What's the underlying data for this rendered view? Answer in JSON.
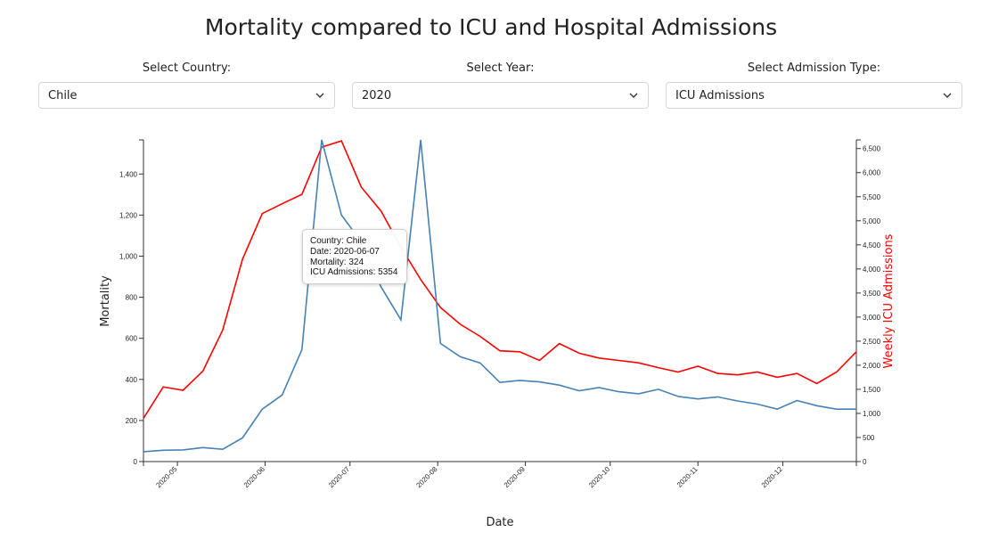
{
  "title": "Mortality compared to ICU and Hospital Admissions",
  "controls": {
    "country": {
      "label": "Select Country:",
      "value": "Chile"
    },
    "year": {
      "label": "Select Year:",
      "value": "2020"
    },
    "admission": {
      "label": "Select Admission Type:",
      "value": "ICU Admissions"
    }
  },
  "tooltip": {
    "country": "Country: Chile",
    "date": "Date: 2020-06-07",
    "mortality": "Mortality: 324",
    "admissions": "ICU Admissions: 5354"
  },
  "colors": {
    "mortality": "#4682b4",
    "admissions": "#ff0000"
  },
  "chart_data": {
    "type": "line",
    "xlabel": "Date",
    "ylabel_left": "Mortality",
    "ylabel_right": "Weekly ICU Admissions",
    "x_ticks": [
      "2020-05",
      "2020-06",
      "2020-07",
      "2020-08",
      "2020-09",
      "2020-10",
      "2020-11",
      "2020-12"
    ],
    "y_left_ticks": [
      "0",
      "200",
      "400",
      "600",
      "800",
      "1,000",
      "1,200",
      "1,400"
    ],
    "y_right_ticks": [
      "0",
      "500",
      "1,000",
      "1,500",
      "2,000",
      "2,500",
      "3,000",
      "3,500",
      "4,000",
      "4,500",
      "5,000",
      "5,500",
      "6,000",
      "6,500"
    ],
    "xlim": [
      "2020-04-19",
      "2020-12-27"
    ],
    "ylim_left": [
      0,
      1566
    ],
    "ylim_right": [
      0,
      6680
    ],
    "x": [
      "2020-04-19",
      "2020-04-26",
      "2020-05-03",
      "2020-05-10",
      "2020-05-17",
      "2020-05-24",
      "2020-05-31",
      "2020-06-07",
      "2020-06-14",
      "2020-06-21",
      "2020-06-28",
      "2020-07-05",
      "2020-07-12",
      "2020-07-19",
      "2020-07-26",
      "2020-08-02",
      "2020-08-09",
      "2020-08-16",
      "2020-08-23",
      "2020-08-30",
      "2020-09-06",
      "2020-09-13",
      "2020-09-20",
      "2020-09-27",
      "2020-10-04",
      "2020-10-11",
      "2020-10-18",
      "2020-10-25",
      "2020-11-01",
      "2020-11-08",
      "2020-11-15",
      "2020-11-22",
      "2020-11-29",
      "2020-12-06",
      "2020-12-13",
      "2020-12-20",
      "2020-12-27"
    ],
    "series": [
      {
        "name": "Mortality",
        "axis": "left",
        "values": [
          48,
          55,
          57,
          68,
          60,
          115,
          255,
          324,
          545,
          1566,
          1200,
          1070,
          850,
          690,
          1566,
          575,
          510,
          480,
          385,
          395,
          388,
          372,
          345,
          360,
          340,
          330,
          352,
          317,
          305,
          315,
          295,
          280,
          255,
          297,
          272,
          255,
          255
        ]
      },
      {
        "name": "ICU Admissions",
        "axis": "right",
        "values": [
          900,
          1550,
          1480,
          1880,
          2730,
          4200,
          5150,
          5354,
          5550,
          6530,
          6660,
          5700,
          5200,
          4450,
          3780,
          3200,
          2850,
          2600,
          2300,
          2280,
          2100,
          2450,
          2250,
          2150,
          2100,
          2050,
          1950,
          1860,
          1980,
          1830,
          1800,
          1860,
          1750,
          1830,
          1620,
          1860,
          2280
        ]
      }
    ]
  }
}
